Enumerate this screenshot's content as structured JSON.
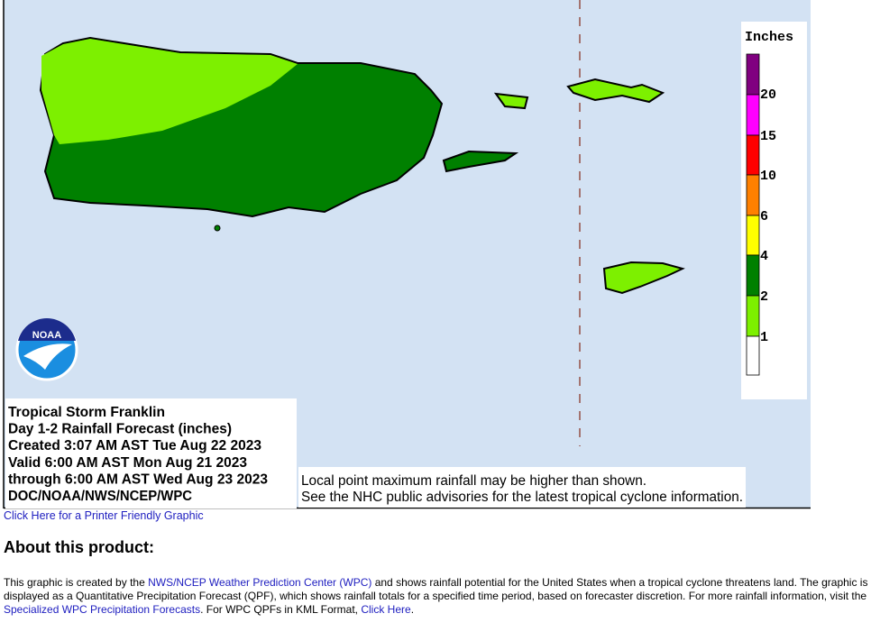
{
  "map": {
    "legend_title": "Inches",
    "legend_labels": [
      "20",
      "15",
      "10",
      "6",
      "4",
      "2",
      "1"
    ],
    "logo_text": "NOAA",
    "info_lines": [
      "Tropical Storm Franklin",
      "Day 1-2 Rainfall Forecast (inches)",
      "Created 3:07 AM AST Tue Aug 22 2023",
      "Valid 6:00 AM AST Mon Aug 21 2023",
      "through 6:00 AM AST Wed Aug 23 2023",
      "DOC/NOAA/NWS/NCEP/WPC"
    ],
    "note_lines": [
      "Local point maximum rainfall may be higher than shown.",
      "See the NHC public advisories for the latest tropical cyclone information."
    ]
  },
  "printer_link": "Click Here for a Printer Friendly Graphic",
  "about": {
    "heading": "About this product:",
    "paragraph": [
      {
        "text": "This graphic is created by the "
      },
      {
        "link": "NWS/NCEP Weather Prediction Center (WPC)"
      },
      {
        "text": " and shows rainfall potential for the United States when a tropical cyclone threatens land. The graphic is displayed as a Quantitative Precipitation Forecast (QPF), which shows rainfall totals for a specified time period, based on forecaster discretion. For more rainfall information, visit the "
      },
      {
        "link": "Specialized WPC Precipitation Forecasts"
      },
      {
        "text": ". For WPC QPFs in KML Format, "
      },
      {
        "link": "Click Here"
      },
      {
        "text": "."
      }
    ]
  }
}
